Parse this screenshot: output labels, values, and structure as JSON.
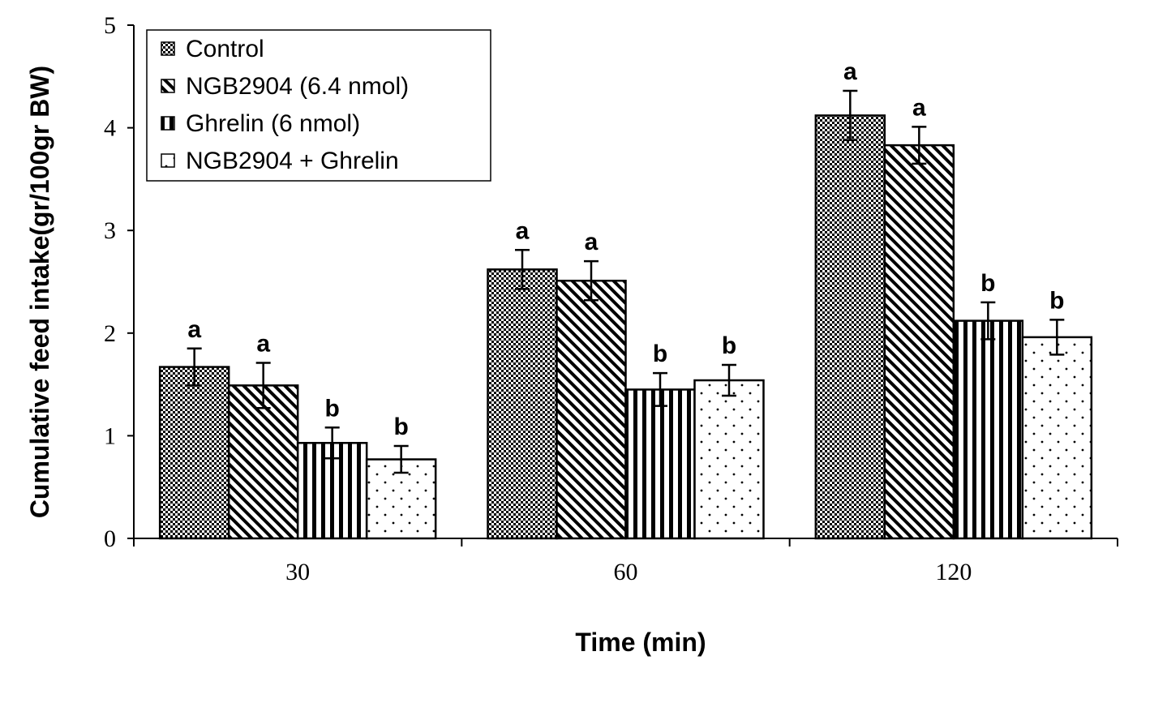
{
  "chart_data": {
    "type": "bar",
    "title": "",
    "xlabel": "Time (min)",
    "ylabel": "Cumulative feed intake(gr/100gr BW)",
    "ylim": [
      0,
      5
    ],
    "yticks": [
      0,
      1,
      2,
      3,
      4,
      5
    ],
    "categories": [
      "30",
      "60",
      "120"
    ],
    "legend": {
      "position": "top-left",
      "frame": true
    },
    "grid": false,
    "series": [
      {
        "name": "Control",
        "pattern": "checker",
        "values": [
          1.67,
          2.62,
          4.12
        ],
        "errors": [
          0.18,
          0.19,
          0.24
        ],
        "letters": [
          "a",
          "a",
          "a"
        ]
      },
      {
        "name": "NGB2904 (6.4 nmol)",
        "pattern": "diagonal",
        "values": [
          1.49,
          2.51,
          3.83
        ],
        "errors": [
          0.22,
          0.19,
          0.18
        ],
        "letters": [
          "a",
          "a",
          "a"
        ]
      },
      {
        "name": "Ghrelin (6 nmol)",
        "pattern": "vertical",
        "values": [
          0.93,
          1.45,
          2.12
        ],
        "errors": [
          0.15,
          0.16,
          0.18
        ],
        "letters": [
          "b",
          "b",
          "b"
        ]
      },
      {
        "name": "NGB2904 + Ghrelin",
        "pattern": "dots",
        "values": [
          0.77,
          1.54,
          1.96
        ],
        "errors": [
          0.13,
          0.15,
          0.17
        ],
        "letters": [
          "b",
          "b",
          "b"
        ]
      }
    ],
    "colors": {
      "bar_stroke": "#000000",
      "pattern_ink": "#000000",
      "background": "#ffffff"
    }
  }
}
